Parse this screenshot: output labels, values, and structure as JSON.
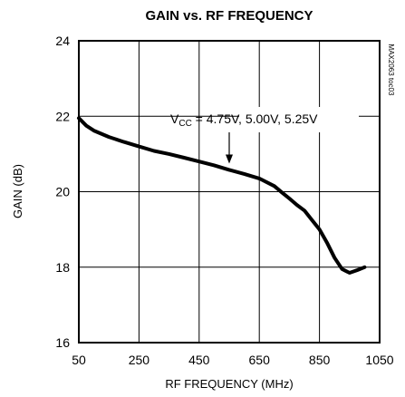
{
  "chart_data": {
    "type": "line",
    "title": "GAIN vs. RF FREQUENCY",
    "xlabel": "RF FREQUENCY (MHz)",
    "ylabel": "GAIN (dB)",
    "xlim": [
      50,
      1050
    ],
    "ylim": [
      16,
      24
    ],
    "xticks": [
      50,
      250,
      450,
      650,
      850,
      1050
    ],
    "yticks": [
      16,
      18,
      20,
      22,
      24
    ],
    "grid": true,
    "annotation": {
      "prefix": "V",
      "subscript": "CC",
      "suffix": " = 4.75V, 5.00V, 5.25V",
      "arrow_target": [
        550,
        20.6
      ]
    },
    "figure_code": "MAX2063 toc03",
    "series": [
      {
        "x": [
          50,
          75,
          100,
          150,
          200,
          250,
          300,
          350,
          400,
          450,
          500,
          550,
          600,
          650,
          700,
          725,
          750,
          775,
          800,
          825,
          850,
          875,
          900,
          925,
          950,
          975,
          1000
        ],
        "y": [
          21.95,
          21.75,
          21.62,
          21.45,
          21.32,
          21.2,
          21.08,
          21.0,
          20.9,
          20.8,
          20.7,
          20.58,
          20.47,
          20.35,
          20.15,
          19.98,
          19.82,
          19.65,
          19.5,
          19.25,
          19.0,
          18.65,
          18.25,
          17.95,
          17.85,
          17.92,
          18.0
        ]
      }
    ]
  }
}
